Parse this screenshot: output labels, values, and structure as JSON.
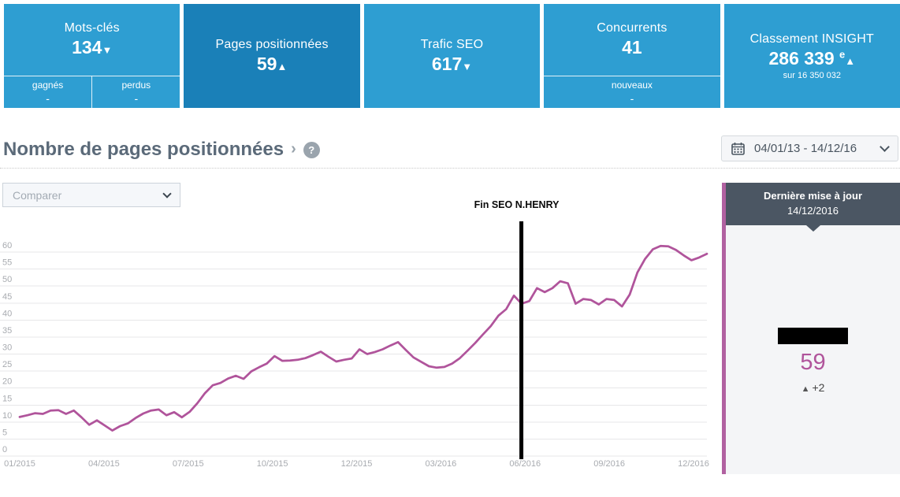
{
  "tabs": [
    {
      "label": "Mots-clés",
      "value": "134",
      "arrow": "▼",
      "sub": [
        {
          "label": "gagnés",
          "value": "-"
        },
        {
          "label": "perdus",
          "value": "-"
        }
      ]
    },
    {
      "label": "Pages positionnées",
      "value": "59",
      "arrow": "▲",
      "active": true
    },
    {
      "label": "Trafic SEO",
      "value": "617",
      "arrow": "▼"
    },
    {
      "label": "Concurrents",
      "value": "41",
      "sub": [
        {
          "label": "nouveaux",
          "value": "-"
        }
      ]
    },
    {
      "label": "Classement INSIGHT",
      "value": "286 339",
      "ordinal": "e",
      "arrow": "▲",
      "note": "sur 16 350 032"
    }
  ],
  "section": {
    "title": "Nombre de pages positionnées",
    "caret": "›",
    "help": "?"
  },
  "date_range": {
    "value": "04/01/13 - 14/12/16"
  },
  "compare": {
    "placeholder": "Comparer"
  },
  "panel": {
    "header_line1": "Dernière mise à jour",
    "header_line2": "14/12/2016",
    "value": "59",
    "delta_arrow": "▲",
    "delta": "+2"
  },
  "chart_data": {
    "type": "line",
    "title": "Nombre de pages positionnées",
    "xlabel": "",
    "ylabel": "",
    "ylim": [
      0,
      60
    ],
    "grid": "horizontal",
    "legend_position": "none",
    "line_color": "#b0549b",
    "y_ticks": [
      0,
      5,
      10,
      15,
      20,
      25,
      30,
      35,
      40,
      45,
      50,
      55,
      60
    ],
    "x_tick_labels": [
      "01/2015",
      "04/2015",
      "07/2015",
      "10/2015",
      "12/2015",
      "03/2016",
      "06/2016",
      "09/2016",
      "12/2016"
    ],
    "annotation": {
      "label": "Fin SEO N.HENRY",
      "x_fraction": 0.73
    },
    "values": [
      11.5,
      12.0,
      12.6,
      12.4,
      13.4,
      13.5,
      12.4,
      13.4,
      11.4,
      9.2,
      10.5,
      9.0,
      7.5,
      8.8,
      9.6,
      11.2,
      12.5,
      13.4,
      13.7,
      12.0,
      12.9,
      11.4,
      13.0,
      15.5,
      18.5,
      20.8,
      21.5,
      22.8,
      23.6,
      22.7,
      24.9,
      26.1,
      27.2,
      29.4,
      28.0,
      28.1,
      28.3,
      28.8,
      29.7,
      30.7,
      29.2,
      27.8,
      28.3,
      28.7,
      31.4,
      30.0,
      30.6,
      31.4,
      32.5,
      33.5,
      31.2,
      29.0,
      27.7,
      26.4,
      26.0,
      26.2,
      27.2,
      28.8,
      31.0,
      33.3,
      35.8,
      38.2,
      41.3,
      43.2,
      47.2,
      44.8,
      45.6,
      49.4,
      48.2,
      49.4,
      51.4,
      50.8,
      44.8,
      46.2,
      45.9,
      44.6,
      46.2,
      45.9,
      44.0,
      47.5,
      54.0,
      58.0,
      60.8,
      61.8,
      61.7,
      60.6,
      59.0,
      57.6,
      58.4,
      59.5
    ]
  }
}
